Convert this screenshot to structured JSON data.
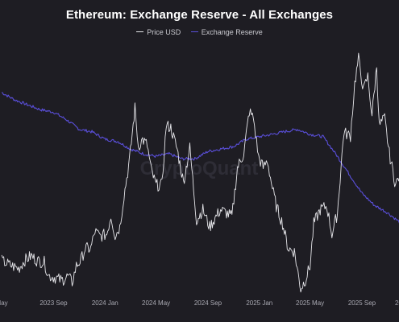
{
  "chart_data": {
    "type": "line",
    "title": "Ethereum: Exchange Reserve - All Exchanges",
    "watermark": "CryptoQuant",
    "x_tick_labels": [
      "May",
      "2023 Sep",
      "2024 Jan",
      "2024 May",
      "2024 Sep",
      "2025 Jan",
      "2025 May",
      "2025 Sep",
      "20"
    ],
    "x_domain": [
      "2023-05",
      "2025-11"
    ],
    "grid": false,
    "legend_position": "top-center",
    "series": [
      {
        "name": "Price USD",
        "color": "#e6e6ea",
        "axis": "left",
        "unit": "USD",
        "ylim": [
          1400,
          4900
        ],
        "points": [
          [
            "2023-05-01",
            1870
          ],
          [
            "2023-05-20",
            1810
          ],
          [
            "2023-06-10",
            1760
          ],
          [
            "2023-06-25",
            1880
          ],
          [
            "2023-07-10",
            1940
          ],
          [
            "2023-07-25",
            1870
          ],
          [
            "2023-08-10",
            1850
          ],
          [
            "2023-08-20",
            1660
          ],
          [
            "2023-09-05",
            1630
          ],
          [
            "2023-09-20",
            1590
          ],
          [
            "2023-10-05",
            1650
          ],
          [
            "2023-10-15",
            1560
          ],
          [
            "2023-10-25",
            1800
          ],
          [
            "2023-11-05",
            1880
          ],
          [
            "2023-11-15",
            2050
          ],
          [
            "2023-11-28",
            2040
          ],
          [
            "2023-12-08",
            2290
          ],
          [
            "2023-12-20",
            2220
          ],
          [
            "2024-01-05",
            2250
          ],
          [
            "2024-01-15",
            2510
          ],
          [
            "2024-01-25",
            2230
          ],
          [
            "2024-02-05",
            2350
          ],
          [
            "2024-02-15",
            2800
          ],
          [
            "2024-02-28",
            3300
          ],
          [
            "2024-03-12",
            4050
          ],
          [
            "2024-03-20",
            3500
          ],
          [
            "2024-03-30",
            3600
          ],
          [
            "2024-04-10",
            3520
          ],
          [
            "2024-04-20",
            3150
          ],
          [
            "2024-05-01",
            2950
          ],
          [
            "2024-05-15",
            2950
          ],
          [
            "2024-05-25",
            3800
          ],
          [
            "2024-06-05",
            3770
          ],
          [
            "2024-06-20",
            3460
          ],
          [
            "2024-07-05",
            2990
          ],
          [
            "2024-07-20",
            3480
          ],
          [
            "2024-08-05",
            2450
          ],
          [
            "2024-08-20",
            2600
          ],
          [
            "2024-09-05",
            2350
          ],
          [
            "2024-09-20",
            2500
          ],
          [
            "2024-10-01",
            2600
          ],
          [
            "2024-10-15",
            2550
          ],
          [
            "2024-10-28",
            2500
          ],
          [
            "2024-11-10",
            3200
          ],
          [
            "2024-11-25",
            3400
          ],
          [
            "2024-12-08",
            4000
          ],
          [
            "2024-12-18",
            3900
          ],
          [
            "2024-12-30",
            3350
          ],
          [
            "2025-01-10",
            3200
          ],
          [
            "2025-01-20",
            3300
          ],
          [
            "2025-02-01",
            2900
          ],
          [
            "2025-02-10",
            2650
          ],
          [
            "2025-02-25",
            2400
          ],
          [
            "2025-03-10",
            2050
          ],
          [
            "2025-03-25",
            2000
          ],
          [
            "2025-04-09",
            1470
          ],
          [
            "2025-04-20",
            1600
          ],
          [
            "2025-05-01",
            1800
          ],
          [
            "2025-05-10",
            2400
          ],
          [
            "2025-05-25",
            2600
          ],
          [
            "2025-06-10",
            2650
          ],
          [
            "2025-06-22",
            2250
          ],
          [
            "2025-07-05",
            2550
          ],
          [
            "2025-07-20",
            3700
          ],
          [
            "2025-08-05",
            3650
          ],
          [
            "2025-08-15",
            4400
          ],
          [
            "2025-08-24",
            4750
          ],
          [
            "2025-09-05",
            4300
          ],
          [
            "2025-09-15",
            4500
          ],
          [
            "2025-09-25",
            3950
          ],
          [
            "2025-10-06",
            4650
          ],
          [
            "2025-10-12",
            3800
          ],
          [
            "2025-10-25",
            3900
          ],
          [
            "2025-11-05",
            3400
          ],
          [
            "2025-11-20",
            2950
          ],
          [
            "2025-11-30",
            3100
          ]
        ]
      },
      {
        "name": "Exchange Reserve",
        "color": "#5a4fdb",
        "axis": "right",
        "ylim": [
          0,
          100
        ],
        "scale_note": "right axis not shown; values are relative",
        "points": [
          [
            "2023-05-01",
            82
          ],
          [
            "2023-06-01",
            79
          ],
          [
            "2023-07-01",
            77
          ],
          [
            "2023-08-01",
            75
          ],
          [
            "2023-09-01",
            74
          ],
          [
            "2023-10-01",
            71
          ],
          [
            "2023-11-01",
            67
          ],
          [
            "2023-12-01",
            66
          ],
          [
            "2024-01-01",
            63
          ],
          [
            "2024-02-01",
            62
          ],
          [
            "2024-03-01",
            59
          ],
          [
            "2024-04-01",
            57
          ],
          [
            "2024-05-01",
            56
          ],
          [
            "2024-06-01",
            57
          ],
          [
            "2024-07-01",
            55
          ],
          [
            "2024-08-01",
            55
          ],
          [
            "2024-09-01",
            58
          ],
          [
            "2024-10-01",
            59
          ],
          [
            "2024-11-01",
            60
          ],
          [
            "2024-12-01",
            63
          ],
          [
            "2025-01-01",
            64
          ],
          [
            "2025-02-01",
            65
          ],
          [
            "2025-03-01",
            66
          ],
          [
            "2025-04-01",
            67
          ],
          [
            "2025-05-01",
            65
          ],
          [
            "2025-06-01",
            64
          ],
          [
            "2025-07-01",
            57
          ],
          [
            "2025-08-01",
            49
          ],
          [
            "2025-09-01",
            41
          ],
          [
            "2025-10-01",
            36
          ],
          [
            "2025-11-01",
            33
          ],
          [
            "2025-12-01",
            29
          ]
        ]
      }
    ]
  }
}
